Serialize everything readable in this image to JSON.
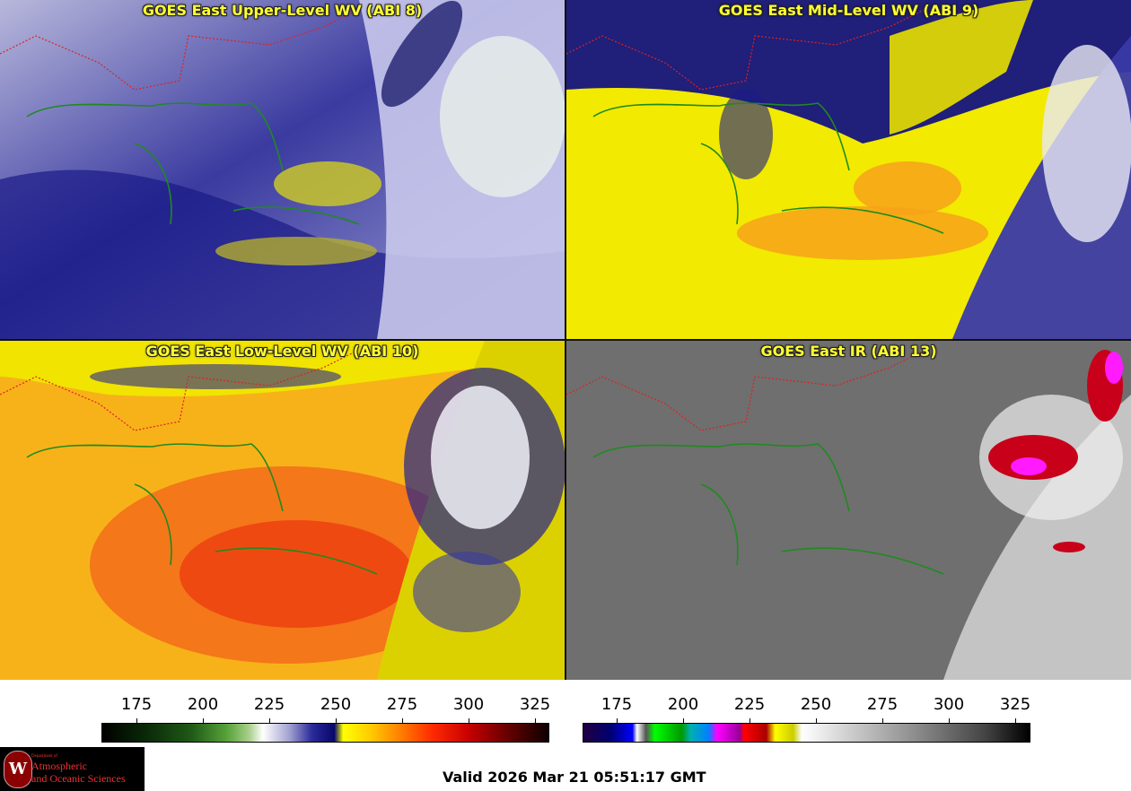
{
  "panels": [
    {
      "title": "GOES East Upper-Level WV (ABI 8)"
    },
    {
      "title": "GOES East Mid-Level WV (ABI 9)"
    },
    {
      "title": "GOES East Low-Level WV (ABI 10)"
    },
    {
      "title": "GOES East IR (ABI 13)"
    }
  ],
  "colorbar_wv": {
    "ticks": [
      "175",
      "200",
      "225",
      "250",
      "275",
      "300",
      "325"
    ]
  },
  "colorbar_ir": {
    "ticks": [
      "175",
      "200",
      "225",
      "250",
      "275",
      "300",
      "325"
    ]
  },
  "logo": {
    "line1": "Department of",
    "line2": "Atmospheric",
    "line3": "and Oceanic Sciences"
  },
  "valid_time": "Valid 2026 Mar 21 05:51:17 GMT",
  "colors": {
    "coast": "#1f8a1f",
    "state_borders": "#e02020",
    "title_text": "#ffff33"
  }
}
